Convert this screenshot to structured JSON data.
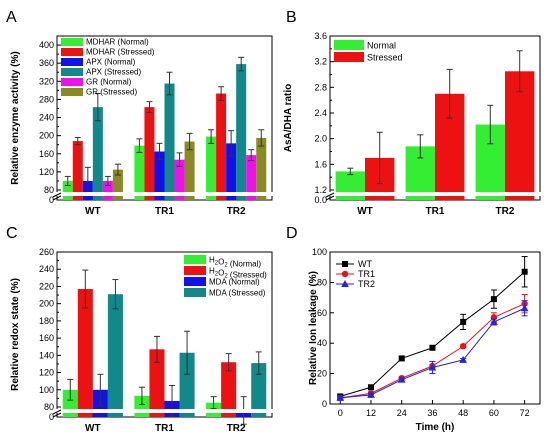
{
  "chart_data": [
    {
      "panel": "A",
      "type": "bar",
      "categories": [
        "WT",
        "TR1",
        "TR2"
      ],
      "ylabel": "Relative enzyme activity (%)",
      "ylim": [
        0,
        420
      ],
      "yticks": [
        0,
        80,
        120,
        160,
        200,
        240,
        280,
        320,
        360,
        400
      ],
      "axis_break": true,
      "legend_position": "top-left",
      "series": [
        {
          "name": "MDHAR (Normal)",
          "color": "#33ee33",
          "values": [
            100,
            178,
            198
          ],
          "errors": [
            10,
            15,
            15
          ]
        },
        {
          "name": "MDHAR (Stressed)",
          "color": "#ee1111",
          "values": [
            188,
            263,
            293
          ],
          "errors": [
            8,
            12,
            15
          ]
        },
        {
          "name": "APX (Normal)",
          "color": "#1111ee",
          "values": [
            100,
            165,
            183
          ],
          "errors": [
            30,
            18,
            28
          ]
        },
        {
          "name": "APX (Stressed)",
          "color": "#11888a",
          "values": [
            263,
            315,
            358
          ],
          "errors": [
            30,
            25,
            15
          ]
        },
        {
          "name": "GR (Normal)",
          "color": "#ee11ee",
          "values": [
            100,
            147,
            157
          ],
          "errors": [
            10,
            15,
            12
          ]
        },
        {
          "name": "GR (Stressed)",
          "color": "#8a8a22",
          "values": [
            125,
            187,
            195
          ],
          "errors": [
            12,
            18,
            18
          ]
        }
      ]
    },
    {
      "panel": "B",
      "type": "bar",
      "categories": [
        "WT",
        "TR1",
        "TR2"
      ],
      "ylabel": "AsA/DHA ratio",
      "ylim": [
        0,
        3.6
      ],
      "yticks": [
        0.0,
        1.2,
        1.6,
        2.0,
        2.4,
        2.8,
        3.2,
        3.6
      ],
      "axis_break": true,
      "legend_position": "top-left",
      "series": [
        {
          "name": "Normal",
          "color": "#33ee33",
          "values": [
            1.49,
            1.88,
            2.22
          ],
          "errors": [
            0.05,
            0.18,
            0.3
          ]
        },
        {
          "name": "Stressed",
          "color": "#ee1111",
          "values": [
            1.7,
            2.7,
            3.05
          ],
          "errors": [
            0.4,
            0.38,
            0.32
          ]
        }
      ]
    },
    {
      "panel": "C",
      "type": "bar",
      "categories": [
        "WT",
        "TR1",
        "TR2"
      ],
      "ylabel": "Relative redox state (%)",
      "ylim": [
        0,
        260
      ],
      "yticks": [
        0,
        80,
        100,
        120,
        140,
        160,
        180,
        200,
        220,
        240,
        260
      ],
      "axis_break": true,
      "legend_position": "top-right",
      "series": [
        {
          "name_main": "H",
          "name_sub": "2",
          "name_mid": "O",
          "name_sub2": "2",
          "name_tail": " (Normal)",
          "color": "#33ee33",
          "values": [
            100,
            93,
            85
          ],
          "errors": [
            12,
            10,
            7
          ]
        },
        {
          "name_main": "H",
          "name_sub": "2",
          "name_mid": "O",
          "name_sub2": "2",
          "name_tail": " (Stressed)",
          "color": "#ee1111",
          "values": [
            217,
            147,
            132
          ],
          "errors": [
            22,
            15,
            10
          ]
        },
        {
          "name_main": "MDA (Normal)",
          "color": "#1111ee",
          "values": [
            100,
            87,
            76
          ],
          "errors": [
            18,
            18,
            16
          ]
        },
        {
          "name_main": "MDA (Stressed)",
          "color": "#11888a",
          "values": [
            211,
            143,
            131
          ],
          "errors": [
            17,
            25,
            13
          ]
        }
      ]
    },
    {
      "panel": "D",
      "type": "line",
      "xlabel": "Time (h)",
      "ylabel": "Relative Ion leakage (%)",
      "x": [
        0,
        12,
        24,
        36,
        48,
        60,
        72
      ],
      "xlim": [
        -4,
        78
      ],
      "ylim": [
        0,
        100
      ],
      "xticks": [
        0,
        12,
        24,
        36,
        48,
        60,
        72
      ],
      "yticks": [
        0,
        20,
        40,
        60,
        80,
        100
      ],
      "legend_position": "top-left",
      "series": [
        {
          "name": "WT",
          "color": "#000000",
          "marker": "square",
          "values": [
            5,
            11,
            30,
            37,
            54,
            69,
            87
          ],
          "errors": [
            1,
            1,
            1,
            1,
            5,
            6,
            10
          ]
        },
        {
          "name": "TR1",
          "color": "#ee1111",
          "marker": "circle",
          "values": [
            4,
            7,
            17,
            25,
            38,
            57,
            66
          ],
          "errors": [
            1,
            1,
            1,
            1,
            1,
            3,
            6
          ]
        },
        {
          "name": "TR2",
          "color": "#2222ee",
          "marker": "triangle",
          "values": [
            4,
            6,
            16,
            24,
            29,
            54,
            63
          ],
          "errors": [
            1,
            1,
            1,
            4,
            1,
            2,
            5
          ]
        }
      ]
    }
  ]
}
